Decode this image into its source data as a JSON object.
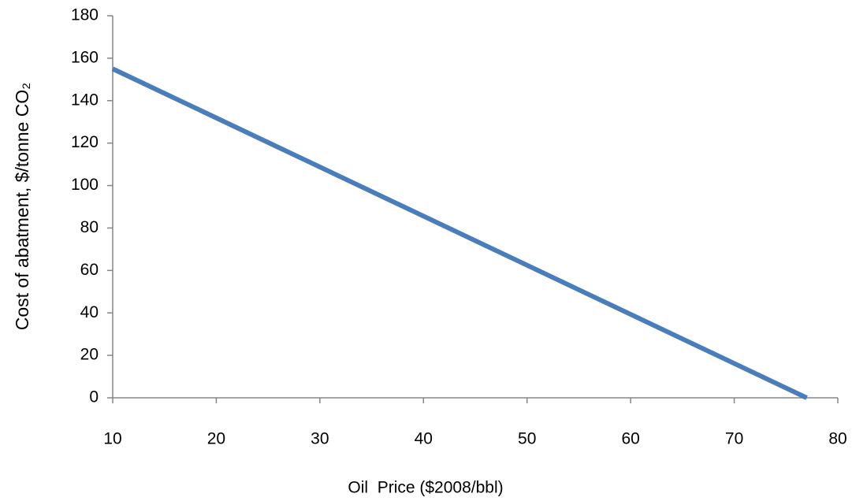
{
  "chart_data": {
    "type": "line",
    "xlabel": "Oil  Price ($2008/bbl)",
    "ylabel": "Cost of abatment, $/tonne CO₂",
    "x": [
      10,
      77
    ],
    "series": [
      {
        "color": "#4a7ebb",
        "values": [
          155,
          0
        ]
      }
    ],
    "xlim": [
      10,
      80
    ],
    "xticks": [
      10,
      20,
      30,
      40,
      50,
      60,
      70,
      80
    ],
    "ylim": [
      0,
      180
    ],
    "yticks": [
      0,
      20,
      40,
      60,
      80,
      100,
      120,
      140,
      160,
      180
    ],
    "grid": false
  }
}
